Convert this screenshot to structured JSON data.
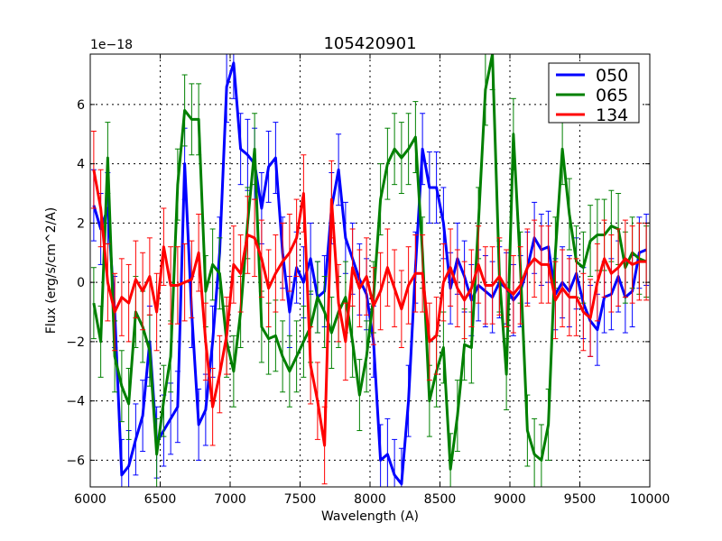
{
  "chart_data": {
    "type": "line",
    "title": "105420901",
    "xlabel": "Wavelength (A)",
    "ylabel": "Flux (erg/s/cm^2/A)",
    "y_offset_label": "1e−18",
    "xlim": [
      6000,
      10000
    ],
    "ylim": [
      -6.9,
      7.7
    ],
    "xticks": [
      6000,
      6500,
      7000,
      7500,
      8000,
      8500,
      9000,
      9500,
      10000
    ],
    "yticks": [
      -6,
      -4,
      -2,
      0,
      2,
      4,
      6
    ],
    "grid": true,
    "legend_position": "top-right",
    "x": [
      6025,
      6075,
      6125,
      6175,
      6225,
      6275,
      6325,
      6375,
      6425,
      6475,
      6525,
      6575,
      6625,
      6675,
      6725,
      6775,
      6825,
      6875,
      6925,
      6975,
      7025,
      7075,
      7125,
      7175,
      7225,
      7275,
      7325,
      7375,
      7425,
      7475,
      7525,
      7575,
      7625,
      7675,
      7725,
      7775,
      7825,
      7875,
      7925,
      7975,
      8025,
      8075,
      8125,
      8175,
      8225,
      8275,
      8325,
      8375,
      8425,
      8475,
      8525,
      8575,
      8625,
      8675,
      8725,
      8775,
      8825,
      8875,
      8925,
      8975,
      9025,
      9075,
      9125,
      9175,
      9225,
      9275,
      9325,
      9375,
      9425,
      9475,
      9525,
      9575,
      9625,
      9675,
      9725,
      9775,
      9825,
      9875,
      9925,
      9975
    ],
    "series": [
      {
        "name": "050",
        "color": "#0000ff",
        "yerr": 1.2,
        "values": [
          2.6,
          1.8,
          2.5,
          -1,
          -6.5,
          -6.2,
          -5.3,
          -4.5,
          -2,
          -5.4,
          -5,
          -4.6,
          -4.2,
          4.0,
          -1,
          -4.8,
          -4.3,
          -2,
          1,
          6.6,
          7.4,
          4.5,
          4.3,
          4.0,
          2.5,
          3.9,
          4.2,
          1,
          -1.0,
          0.5,
          0,
          0.8,
          -0.5,
          -0.3,
          2.5,
          3.8,
          1.5,
          0.8,
          0.1,
          -0.4,
          -2,
          -6,
          -5.8,
          -6.5,
          -6.8,
          -4,
          0.5,
          4.5,
          3.2,
          3.2,
          2,
          -0.2,
          0.8,
          0.2,
          -0.6,
          -0.1,
          -0.3,
          -0.5,
          0.0,
          -0.2,
          -0.6,
          -0.3,
          0.5,
          1.5,
          1.1,
          1.2,
          -0.4,
          0.0,
          -0.3,
          0.3,
          -0.7,
          -1.3,
          -1.6,
          -0.5,
          -0.4,
          0.2,
          -0.5,
          -0.3,
          1.0,
          1.1
        ]
      },
      {
        "name": "065",
        "color": "#008000",
        "yerr": 1.2,
        "values": [
          -0.7,
          -2.0,
          4.2,
          -2.5,
          -3.5,
          -4.1,
          -1.0,
          -1.5,
          -2.3,
          -5.8,
          -4.0,
          -2.5,
          3.3,
          5.8,
          5.5,
          5.5,
          -0.3,
          0.6,
          0.3,
          -2.0,
          -3.0,
          -1,
          2.0,
          4.5,
          -1.5,
          -1.9,
          -1.8,
          -2.5,
          -3.0,
          -2.5,
          -2.0,
          -1.5,
          -0.5,
          -1.0,
          -1.7,
          -1.0,
          -0.5,
          -2.0,
          -3.8,
          -2.5,
          -0.5,
          2.8,
          4.0,
          4.5,
          4.2,
          4.5,
          4.9,
          1.0,
          -4.0,
          -3.0,
          -2.2,
          -6.3,
          -4.5,
          -2.1,
          -2.2,
          2.0,
          6.5,
          7.7,
          0.2,
          -3.1,
          5.0,
          0.5,
          -5.0,
          -5.8,
          -6.0,
          -4.8,
          1.0,
          4.5,
          2.3,
          0.7,
          0.5,
          1.4,
          1.6,
          1.6,
          1.9,
          1.8,
          0.5,
          1.0,
          0.8,
          0.7
        ]
      },
      {
        "name": "134",
        "color": "#ff0000",
        "yerr": 1.3,
        "values": [
          3.8,
          2.5,
          0,
          -1.0,
          -0.5,
          -0.7,
          0.1,
          -0.3,
          0.2,
          -1.0,
          1.2,
          -0.1,
          -0.1,
          0,
          0.1,
          1.0,
          -2.0,
          -4.2,
          -3.1,
          -1.8,
          0.6,
          0.3,
          1.6,
          1.5,
          0.8,
          -0.2,
          0.3,
          0.7,
          1.0,
          1.5,
          3.0,
          -2.8,
          -4.0,
          -5.5,
          2.8,
          -0.7,
          -2.0,
          0.5,
          -0.2,
          0.2,
          -0.8,
          -0.3,
          0.5,
          -0.2,
          -0.9,
          -0.1,
          0.3,
          0.3,
          -2.0,
          -1.8,
          0.0,
          0.5,
          -0.2,
          -0.6,
          -0.2,
          0.6,
          -0.1,
          -0.1,
          0.2,
          -0.2,
          -0.4,
          -0.1,
          0.5,
          0.8,
          0.6,
          0.6,
          -0.6,
          -0.2,
          -0.5,
          -0.5,
          -1.0,
          -1.2,
          0,
          0.8,
          0.3,
          0.5,
          0.8,
          0.6,
          0.7,
          0.7
        ]
      }
    ]
  }
}
